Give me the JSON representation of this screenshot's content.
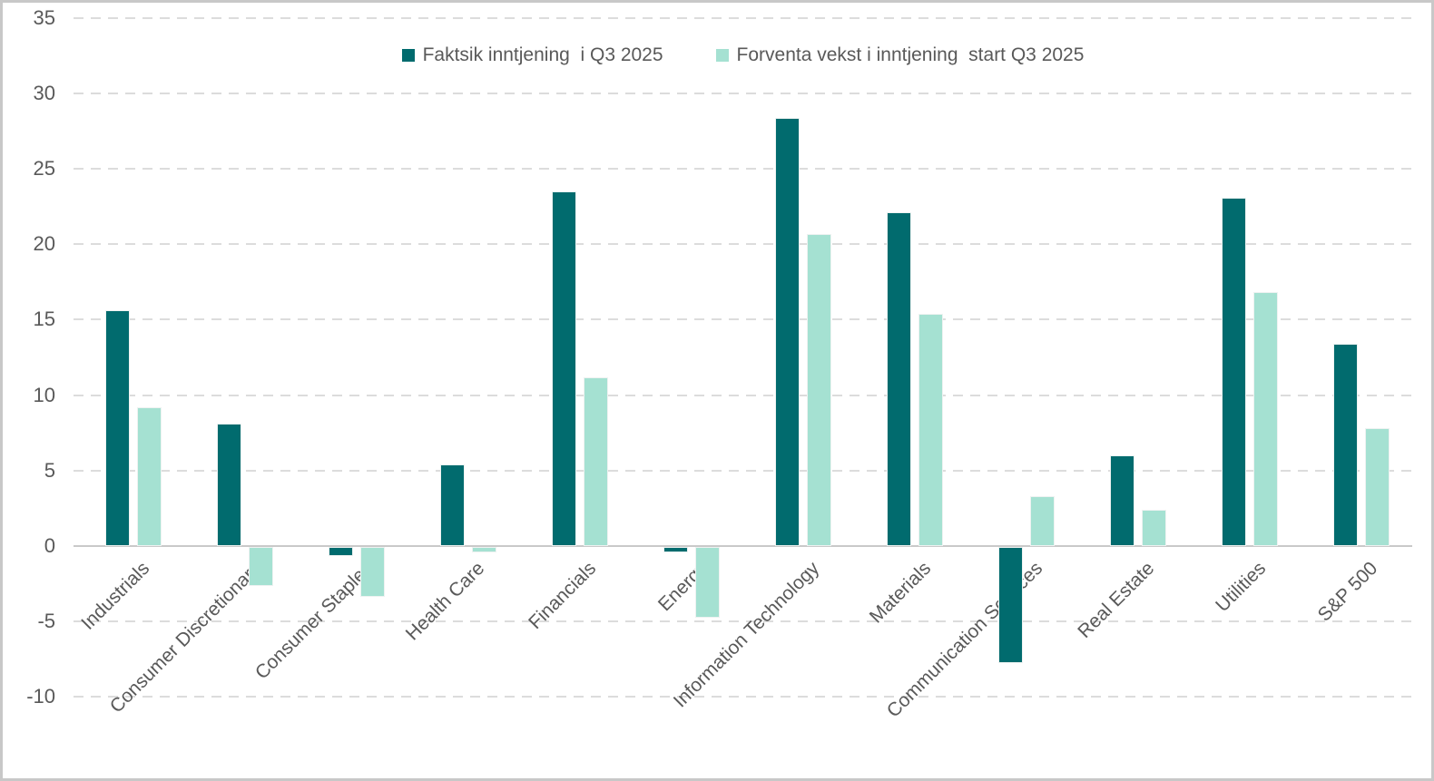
{
  "chart_data": {
    "type": "bar",
    "title": "",
    "xlabel": "",
    "ylabel": "",
    "categories": [
      "Industrials",
      "Consumer Discretionary",
      "Consumer Staples",
      "Health Care",
      "Financials",
      "Energy",
      "Information Technology",
      "Materials",
      "Communication Services",
      "Real Estate",
      "Utilities",
      "S&P 500"
    ],
    "series": [
      {
        "name": "Faktsik inntjening  i Q3 2025",
        "color": "#016B6E",
        "values": [
          15.6,
          8.1,
          -0.6,
          5.4,
          23.5,
          -0.4,
          28.4,
          22.1,
          -7.7,
          6.0,
          23.1,
          13.4
        ]
      },
      {
        "name": "Forventa vekst i inntjening  start Q3 2025",
        "color": "#A5E1D2",
        "values": [
          9.2,
          -2.6,
          -3.3,
          -0.4,
          11.2,
          -4.7,
          20.7,
          15.4,
          3.3,
          2.4,
          16.8,
          7.8
        ]
      }
    ],
    "y_ticks": [
      35,
      30,
      25,
      20,
      15,
      10,
      5,
      0,
      -5,
      -10
    ],
    "ylim": [
      -10,
      35
    ],
    "grid": "horizontal-dashed",
    "legend_position": "top-center"
  },
  "colors": {
    "axis_line": "#C9C9C9",
    "gridline": "#DCDCDC",
    "text": "#595959",
    "background": "#FFFFFF",
    "border": "#C8C8C8"
  }
}
